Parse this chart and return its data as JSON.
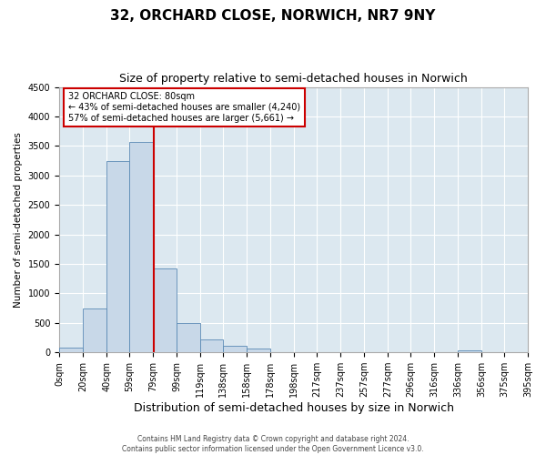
{
  "title": "32, ORCHARD CLOSE, NORWICH, NR7 9NY",
  "subtitle": "Size of property relative to semi-detached houses in Norwich",
  "xlabel": "Distribution of semi-detached houses by size in Norwich",
  "ylabel": "Number of semi-detached properties",
  "annotation_text_line1": "32 ORCHARD CLOSE: 80sqm",
  "annotation_text_line2": "← 43% of semi-detached houses are smaller (4,240)",
  "annotation_text_line3": "57% of semi-detached houses are larger (5,661) →",
  "footer_line1": "Contains HM Land Registry data © Crown copyright and database right 2024.",
  "footer_line2": "Contains public sector information licensed under the Open Government Licence v3.0.",
  "bin_edges": [
    0,
    20,
    40,
    59,
    79,
    99,
    119,
    138,
    158,
    178,
    198,
    217,
    237,
    257,
    277,
    296,
    316,
    336,
    356,
    375,
    395
  ],
  "bin_labels": [
    "0sqm",
    "20sqm",
    "40sqm",
    "59sqm",
    "79sqm",
    "99sqm",
    "119sqm",
    "138sqm",
    "158sqm",
    "178sqm",
    "198sqm",
    "217sqm",
    "237sqm",
    "257sqm",
    "277sqm",
    "296sqm",
    "316sqm",
    "336sqm",
    "356sqm",
    "375sqm",
    "395sqm"
  ],
  "bar_heights": [
    80,
    750,
    3250,
    3560,
    1430,
    500,
    220,
    110,
    70,
    0,
    0,
    0,
    0,
    0,
    0,
    0,
    0,
    40,
    0,
    0
  ],
  "bar_color": "#c8d8e8",
  "bar_edge_color": "#5a8ab5",
  "vline_x": 80,
  "vline_color": "#cc0000",
  "annotation_box_color": "#cc0000",
  "ylim": [
    0,
    4500
  ],
  "yticks": [
    0,
    500,
    1000,
    1500,
    2000,
    2500,
    3000,
    3500,
    4000,
    4500
  ],
  "background_color": "#dce8f0",
  "title_fontsize": 11,
  "subtitle_fontsize": 9,
  "xlabel_fontsize": 9,
  "ylabel_fontsize": 7.5,
  "tick_fontsize": 7,
  "annotation_fontsize": 7,
  "footer_fontsize": 5.5
}
